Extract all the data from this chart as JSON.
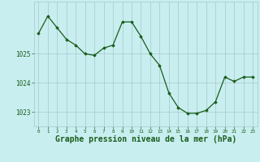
{
  "x": [
    0,
    1,
    2,
    3,
    4,
    5,
    6,
    7,
    8,
    9,
    10,
    11,
    12,
    13,
    14,
    15,
    16,
    17,
    18,
    19,
    20,
    21,
    22,
    23
  ],
  "y": [
    1025.7,
    1026.3,
    1025.9,
    1025.5,
    1025.3,
    1025.0,
    1024.95,
    1025.2,
    1025.3,
    1026.1,
    1026.1,
    1025.6,
    1025.0,
    1024.6,
    1023.65,
    1023.15,
    1022.95,
    1022.95,
    1023.05,
    1023.35,
    1024.2,
    1024.05,
    1024.2,
    1024.2
  ],
  "line_color": "#1a5c1a",
  "marker": "D",
  "marker_size": 1.8,
  "bg_color": "#c8eef0",
  "grid_color": "#a8c8cc",
  "xlabel": "Graphe pression niveau de la mer (hPa)",
  "xlabel_fontsize": 7,
  "tick_color": "#1a5c1a",
  "yticks": [
    1023,
    1024,
    1025
  ],
  "ylim": [
    1022.5,
    1026.8
  ],
  "xlim": [
    -0.5,
    23.5
  ]
}
